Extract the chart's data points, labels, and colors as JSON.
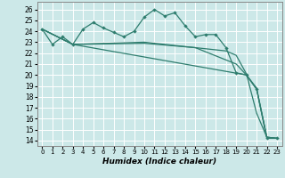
{
  "xlabel": "Humidex (Indice chaleur)",
  "bg_color": "#cce8e8",
  "grid_color": "#aacccc",
  "line_color": "#2e7d6e",
  "xlim": [
    -0.5,
    23.5
  ],
  "ylim": [
    13.5,
    26.7
  ],
  "yticks": [
    14,
    15,
    16,
    17,
    18,
    19,
    20,
    21,
    22,
    23,
    24,
    25,
    26
  ],
  "xticks": [
    0,
    1,
    2,
    3,
    4,
    5,
    6,
    7,
    8,
    9,
    10,
    11,
    12,
    13,
    14,
    15,
    16,
    17,
    18,
    19,
    20,
    21,
    22,
    23
  ],
  "line1_x": [
    0,
    1,
    2,
    3,
    4,
    5,
    6,
    7,
    8,
    9,
    10,
    11,
    12,
    13,
    14,
    15,
    16,
    17,
    18,
    19,
    20,
    21,
    22,
    23
  ],
  "line1_y": [
    24.2,
    22.8,
    23.5,
    22.8,
    24.2,
    24.8,
    24.3,
    23.9,
    23.5,
    24.0,
    25.3,
    26.0,
    25.4,
    25.7,
    24.5,
    23.5,
    23.7,
    23.7,
    22.5,
    20.2,
    20.0,
    18.7,
    14.2,
    14.2
  ],
  "line2_x": [
    0,
    3,
    20,
    21,
    22,
    23
  ],
  "line2_y": [
    24.2,
    22.8,
    20.0,
    18.7,
    14.3,
    14.2
  ],
  "line3_x": [
    0,
    3,
    10,
    15,
    19,
    20,
    21,
    22,
    23
  ],
  "line3_y": [
    24.2,
    22.8,
    23.0,
    22.5,
    21.0,
    20.0,
    18.8,
    14.3,
    14.2
  ],
  "line4_x": [
    0,
    3,
    10,
    15,
    18,
    19,
    20,
    21,
    22,
    23
  ],
  "line4_y": [
    24.2,
    22.8,
    22.9,
    22.5,
    22.2,
    21.8,
    20.1,
    16.5,
    14.3,
    14.2
  ]
}
